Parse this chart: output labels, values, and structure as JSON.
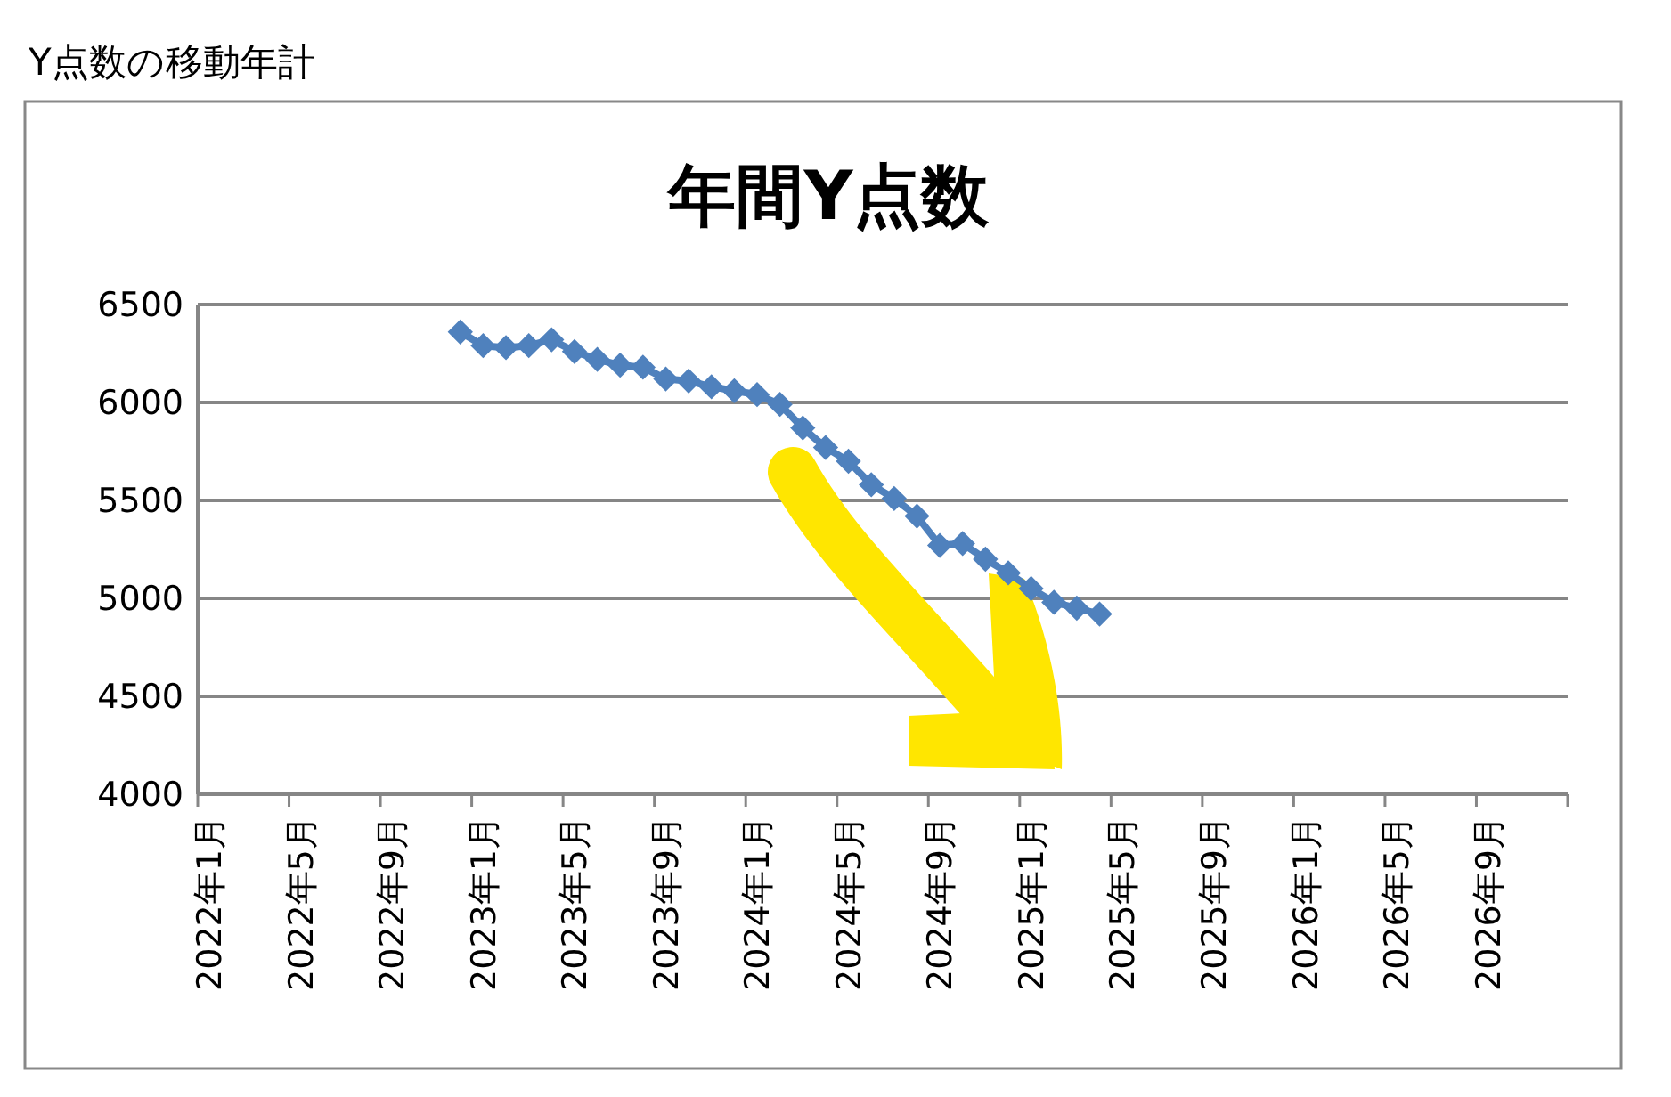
{
  "chart_data": {
    "type": "line",
    "title": "年間Y点数",
    "annotations": [
      "Y点数の移動年計"
    ],
    "categories": [
      "2022年1月",
      null,
      null,
      null,
      "2022年5月",
      null,
      null,
      null,
      "2022年9月",
      null,
      null,
      null,
      "2023年1月",
      null,
      null,
      null,
      "2023年5月",
      null,
      null,
      null,
      "2023年9月",
      null,
      null,
      null,
      "2024年1月",
      null,
      null,
      null,
      "2024年5月",
      null,
      null,
      null,
      "2024年9月",
      null,
      null,
      null,
      "2025年1月",
      null,
      null,
      null,
      "2025年5月",
      null,
      null,
      null,
      "2025年9月",
      null,
      null,
      null,
      "2026年1月",
      null,
      null,
      null,
      "2026年5月",
      null,
      null,
      null,
      "2026年9月",
      null,
      null,
      null
    ],
    "series": [
      {
        "color": "#4f81bd",
        "values": [
          null,
          null,
          null,
          null,
          null,
          null,
          null,
          null,
          null,
          null,
          null,
          6360,
          6290,
          6280,
          6290,
          6320,
          6260,
          6220,
          6190,
          6180,
          6120,
          6110,
          6080,
          6060,
          6040,
          5990,
          5870,
          5770,
          5700,
          5580,
          5510,
          5420,
          5270,
          5280,
          5200,
          5130,
          5050,
          4980,
          4950,
          4920,
          null,
          null,
          null,
          null,
          null,
          null,
          null,
          null,
          null,
          null,
          null,
          null,
          null,
          null,
          null,
          null,
          null,
          null,
          null,
          null
        ]
      }
    ],
    "ylim": [
      4000,
      6500
    ],
    "yticks": [
      4000,
      4500,
      5000,
      5500,
      6000,
      6500
    ],
    "grid": "y",
    "marker": "diamond",
    "line_style": "solid"
  }
}
